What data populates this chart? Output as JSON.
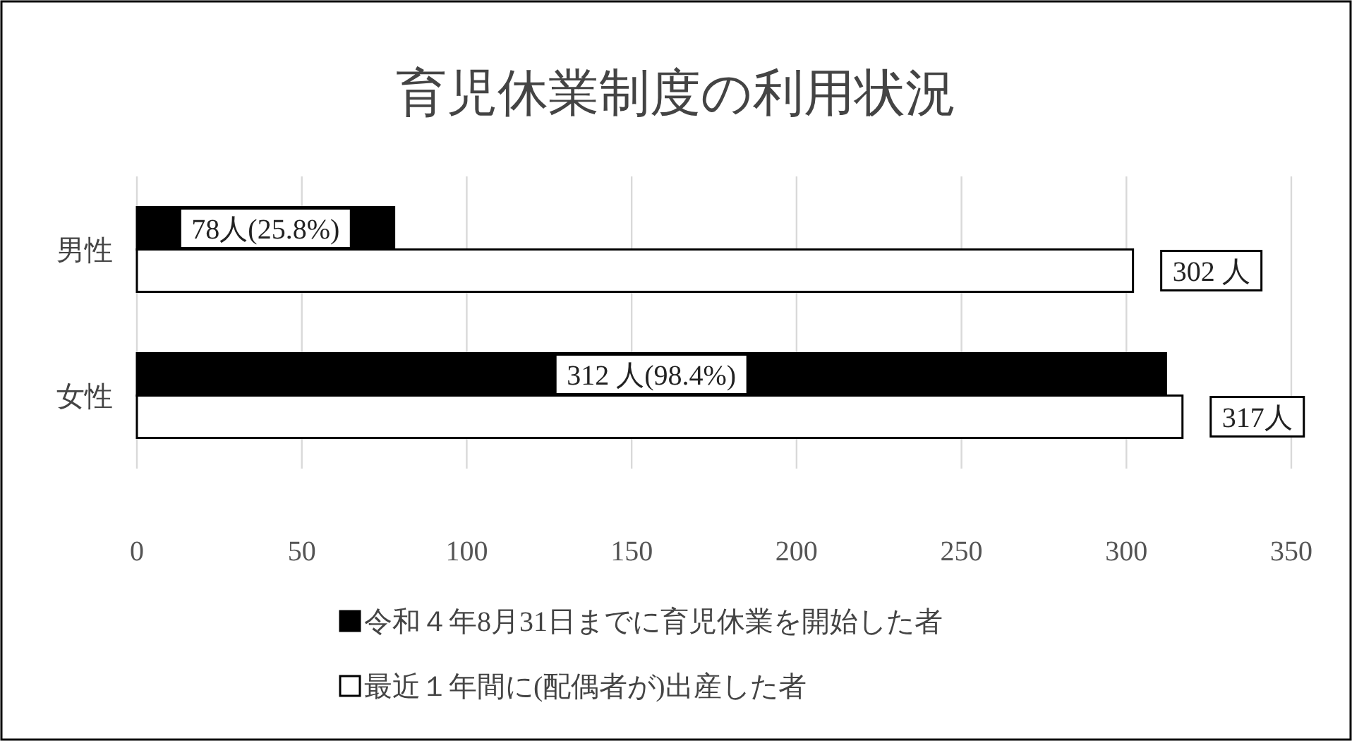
{
  "chart_data": {
    "type": "bar",
    "orientation": "horizontal",
    "title": "育児休業制度の利用状況",
    "categories": [
      "男性",
      "女性"
    ],
    "series": [
      {
        "name": "令和４年8月31日までに育児休業を開始した者",
        "color": "#000000",
        "values": [
          78,
          312
        ],
        "value_labels": [
          "78人(25.8%)",
          "312 人(98.4%)"
        ]
      },
      {
        "name": "最近１年間に(配偶者が)出産した者",
        "color": "#ffffff",
        "values": [
          302,
          317
        ],
        "value_labels": [
          "302 人",
          "317人"
        ]
      }
    ],
    "xlim": [
      0,
      350
    ],
    "xticks": [
      0,
      50,
      100,
      150,
      200,
      250,
      300,
      350
    ],
    "grid": "x",
    "legend": "bottom"
  }
}
